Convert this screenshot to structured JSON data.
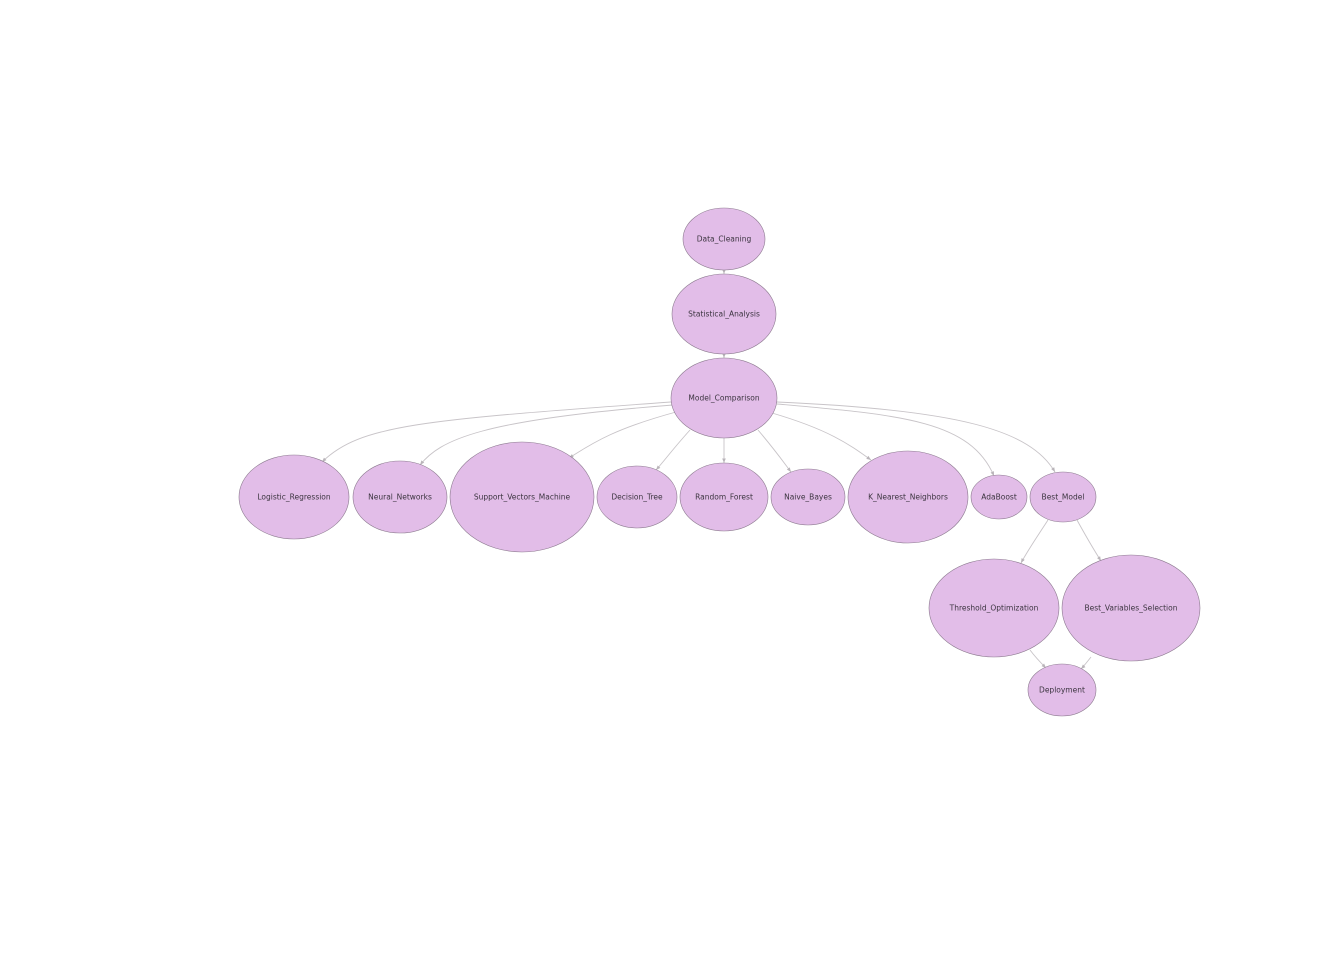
{
  "diagram": {
    "type": "directed-graph",
    "colors": {
      "node_fill": "#e2bde8",
      "node_stroke": "#8c7a8f",
      "edge": "#c8c4c8",
      "label": "#3c3540"
    },
    "nodes": [
      {
        "id": "data_cleaning",
        "label": "Data_Cleaning"
      },
      {
        "id": "statistical_analysis",
        "label": "Statistical_Analysis"
      },
      {
        "id": "model_comparison",
        "label": "Model_Comparison"
      },
      {
        "id": "logistic_regression",
        "label": "Logistic_Regression"
      },
      {
        "id": "neural_networks",
        "label": "Neural_Networks"
      },
      {
        "id": "support_vectors_machine",
        "label": "Support_Vectors_Machine"
      },
      {
        "id": "decision_tree",
        "label": "Decision_Tree"
      },
      {
        "id": "random_forest",
        "label": "Random_Forest"
      },
      {
        "id": "naive_bayes",
        "label": "Naive_Bayes"
      },
      {
        "id": "k_nearest_neighbors",
        "label": "K_Nearest_Neighbors"
      },
      {
        "id": "adaboost",
        "label": "AdaBoost"
      },
      {
        "id": "best_model",
        "label": "Best_Model"
      },
      {
        "id": "threshold_optimization",
        "label": "Threshold_Optimization"
      },
      {
        "id": "best_variables_selection",
        "label": "Best_Variables_Selection"
      },
      {
        "id": "deployment",
        "label": "Deployment"
      }
    ],
    "edges": [
      {
        "from": "data_cleaning",
        "to": "statistical_analysis"
      },
      {
        "from": "statistical_analysis",
        "to": "model_comparison"
      },
      {
        "from": "model_comparison",
        "to": "logistic_regression"
      },
      {
        "from": "model_comparison",
        "to": "neural_networks"
      },
      {
        "from": "model_comparison",
        "to": "support_vectors_machine"
      },
      {
        "from": "model_comparison",
        "to": "decision_tree"
      },
      {
        "from": "model_comparison",
        "to": "random_forest"
      },
      {
        "from": "model_comparison",
        "to": "naive_bayes"
      },
      {
        "from": "model_comparison",
        "to": "k_nearest_neighbors"
      },
      {
        "from": "model_comparison",
        "to": "adaboost"
      },
      {
        "from": "model_comparison",
        "to": "best_model"
      },
      {
        "from": "best_model",
        "to": "threshold_optimization"
      },
      {
        "from": "best_model",
        "to": "best_variables_selection"
      },
      {
        "from": "threshold_optimization",
        "to": "deployment"
      },
      {
        "from": "best_variables_selection",
        "to": "deployment"
      }
    ]
  }
}
